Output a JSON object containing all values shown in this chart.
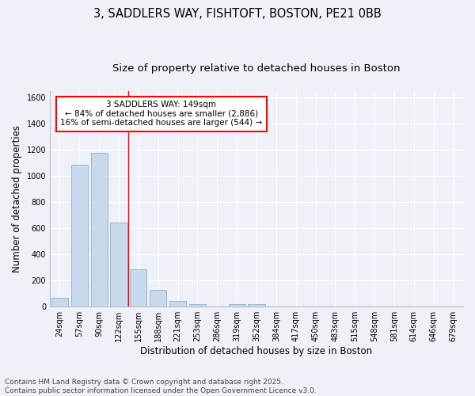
{
  "title_line1": "3, SADDLERS WAY, FISHTOFT, BOSTON, PE21 0BB",
  "title_line2": "Size of property relative to detached houses in Boston",
  "xlabel": "Distribution of detached houses by size in Boston",
  "ylabel": "Number of detached properties",
  "bar_labels": [
    "24sqm",
    "57sqm",
    "90sqm",
    "122sqm",
    "155sqm",
    "188sqm",
    "221sqm",
    "253sqm",
    "286sqm",
    "319sqm",
    "352sqm",
    "384sqm",
    "417sqm",
    "450sqm",
    "483sqm",
    "515sqm",
    "548sqm",
    "581sqm",
    "614sqm",
    "646sqm",
    "679sqm"
  ],
  "bar_values": [
    65,
    1085,
    1180,
    645,
    285,
    130,
    42,
    20,
    0,
    18,
    18,
    0,
    0,
    0,
    0,
    0,
    0,
    0,
    0,
    0,
    0
  ],
  "bar_color": "#c9d9ed",
  "bar_edge_color": "#8ab0d0",
  "red_line_index": 3.5,
  "ylim": [
    0,
    1650
  ],
  "yticks": [
    0,
    200,
    400,
    600,
    800,
    1000,
    1200,
    1400,
    1600
  ],
  "annotation_text_line1": "3 SADDLERS WAY: 149sqm",
  "annotation_text_line2": "← 84% of detached houses are smaller (2,886)",
  "annotation_text_line3": "16% of semi-detached houses are larger (544) →",
  "annotation_box_color": "white",
  "annotation_box_edge_color": "red",
  "footer_line1": "Contains HM Land Registry data © Crown copyright and database right 2025.",
  "footer_line2": "Contains public sector information licensed under the Open Government Licence v3.0.",
  "background_color": "#eef2f8",
  "grid_color": "white",
  "title_fontsize": 10.5,
  "subtitle_fontsize": 9.5,
  "axis_label_fontsize": 8.5,
  "tick_fontsize": 7,
  "annotation_fontsize": 7.5,
  "footer_fontsize": 6.5
}
